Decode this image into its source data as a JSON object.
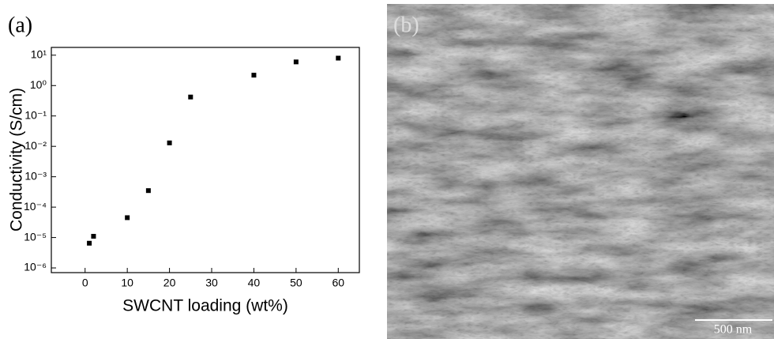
{
  "chart_data": {
    "type": "scatter",
    "panel_label": "(a)",
    "x_label": "SWCNT loading (wt%)",
    "y_label": "Conductivity (S/cm)",
    "x": [
      1,
      2,
      10,
      15,
      20,
      25,
      40,
      50,
      60
    ],
    "values": [
      6.5e-06,
      1.1e-05,
      4.5e-05,
      0.00035,
      0.013,
      0.42,
      2.2,
      6,
      8
    ],
    "color": "#000000",
    "y_log": true,
    "xlim": [
      -8,
      65
    ],
    "xticks": [
      0,
      10,
      20,
      30,
      40,
      50,
      60
    ],
    "ylim": [
      7e-07,
      18
    ],
    "yticks": [
      {
        "value": 1e-06,
        "label": "10⁻⁶"
      },
      {
        "value": 1e-05,
        "label": "10⁻⁵"
      },
      {
        "value": 0.0001,
        "label": "10⁻⁴"
      },
      {
        "value": 0.001,
        "label": "10⁻³"
      },
      {
        "value": 0.01,
        "label": "10⁻²"
      },
      {
        "value": 0.1,
        "label": "10⁻¹"
      },
      {
        "value": 1,
        "label": "10⁰"
      },
      {
        "value": 10,
        "label": "10¹"
      }
    ]
  },
  "image_panel": {
    "panel_label": "(b)",
    "scale_bar": "500 nm"
  }
}
